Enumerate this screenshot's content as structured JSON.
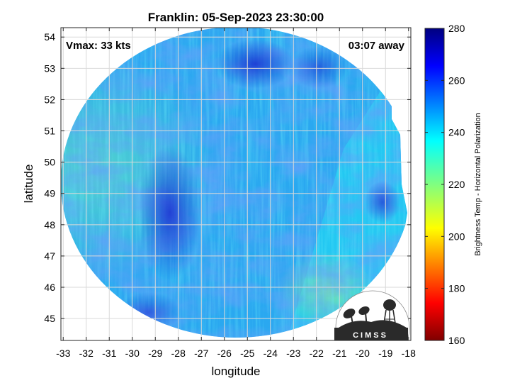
{
  "title": "Franklin: 05-Sep-2023 23:30:00",
  "annotations": {
    "vmax": "Vmax: 33 kts",
    "time_away": "03:07 away"
  },
  "axes": {
    "xlabel": "longitude",
    "ylabel": "latitude",
    "xlim": [
      -33.1,
      -17.9
    ],
    "ylim": [
      44.3,
      54.3
    ],
    "xticks": [
      "-33",
      "-32",
      "-31",
      "-30",
      "-29",
      "-28",
      "-27",
      "-26",
      "-25",
      "-24",
      "-23",
      "-22",
      "-21",
      "-20",
      "-19",
      "-18"
    ],
    "yticks": [
      "45",
      "46",
      "47",
      "48",
      "49",
      "50",
      "51",
      "52",
      "53",
      "54"
    ],
    "grid": true
  },
  "colorbar": {
    "label": "Brightness Temp - Horizontal Polarization",
    "range": [
      160,
      280
    ],
    "ticks": [
      "160",
      "180",
      "200",
      "220",
      "240",
      "260",
      "280"
    ],
    "colormap": "jet"
  },
  "logo": {
    "text": "CIMSS"
  },
  "chart_data": {
    "type": "heatmap",
    "title": "Franklin: 05-Sep-2023 23:30:00",
    "xlabel": "longitude",
    "ylabel": "latitude",
    "value_range": [
      160,
      280
    ],
    "typical_value_range": [
      228,
      268
    ],
    "swath_shape": "circular sensor footprint, truncated at right edge",
    "colors": {
      "deep_blue": "#1f3fd6",
      "mid_blue": "#2f8ef0",
      "cyan": "#22d0f2",
      "light_green": "#7fe6a8"
    }
  }
}
